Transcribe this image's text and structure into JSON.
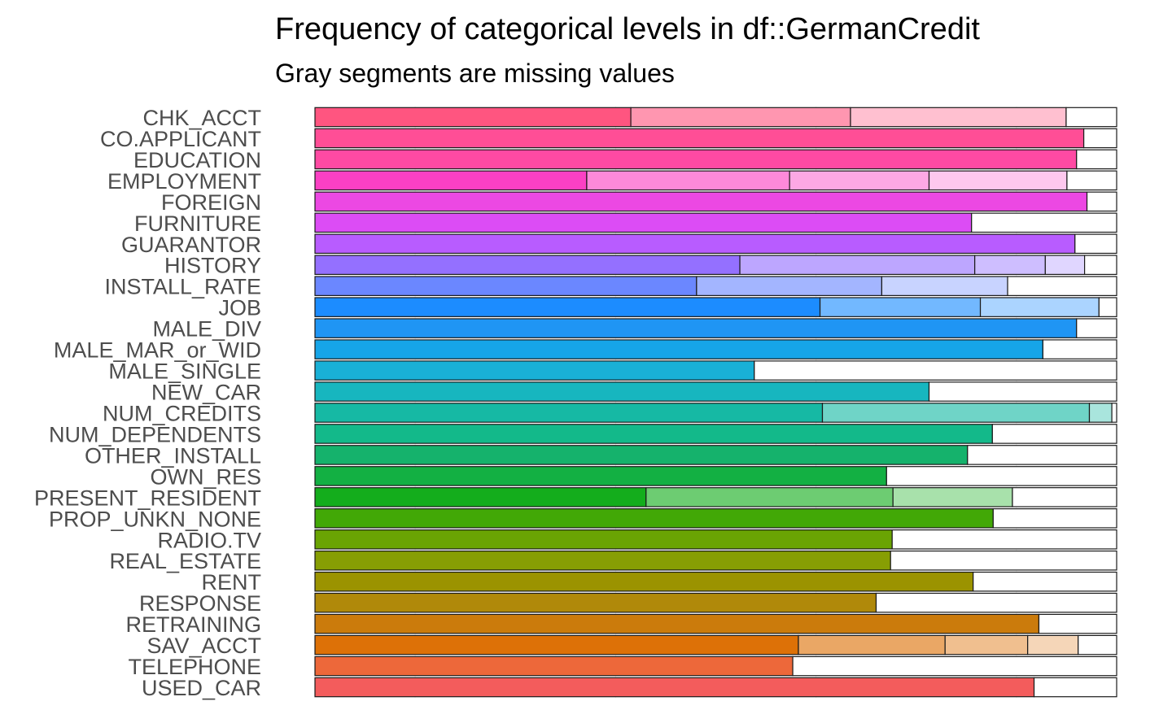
{
  "chart_data": {
    "type": "bar",
    "orientation": "horizontal",
    "stacked": true,
    "normalized": true,
    "title": "Frequency of categorical levels in df::GermanCredit",
    "subtitle": "Gray segments are missing values",
    "xlabel": "",
    "ylabel": "",
    "xlim": [
      0,
      1
    ],
    "grid": true,
    "legend": "none",
    "categories": [
      "CHK_ACCT",
      "CO.APPLICANT",
      "EDUCATION",
      "EMPLOYMENT",
      "FOREIGN",
      "FURNITURE",
      "GUARANTOR",
      "HISTORY",
      "INSTALL_RATE",
      "JOB",
      "MALE_DIV",
      "MALE_MAR_or_WID",
      "MALE_SINGLE",
      "NEW_CAR",
      "NUM_CREDITS",
      "NUM_DEPENDENTS",
      "OTHER_INSTALL",
      "OWN_RES",
      "PRESENT_RESIDENT",
      "PROP_UNKN_NONE",
      "RADIO.TV",
      "REAL_ESTATE",
      "RENT",
      "RESPONSE",
      "RETRAINING",
      "SAV_ACCT",
      "TELEPHONE",
      "USED_CAR"
    ],
    "bars": [
      {
        "name": "CHK_ACCT",
        "color": "#ff5580",
        "proportions": [
          0.394,
          0.274,
          0.269,
          0.063
        ]
      },
      {
        "name": "CO.APPLICANT",
        "color": "#ff4e96",
        "proportions": [
          0.959,
          0.041
        ]
      },
      {
        "name": "EDUCATION",
        "color": "#fe4aa3",
        "proportions": [
          0.95,
          0.05
        ]
      },
      {
        "name": "EMPLOYMENT",
        "color": "#fb40c4",
        "proportions": [
          0.339,
          0.253,
          0.174,
          0.172,
          0.062
        ]
      },
      {
        "name": "FOREIGN",
        "color": "#ec48e3",
        "proportions": [
          0.963,
          0.037
        ]
      },
      {
        "name": "FURNITURE",
        "color": "#dc4cf5",
        "proportions": [
          0.819,
          0.181
        ]
      },
      {
        "name": "GUARANTOR",
        "color": "#b85cff",
        "proportions": [
          0.948,
          0.052
        ]
      },
      {
        "name": "HISTORY",
        "color": "#9470ff",
        "proportions": [
          0.53,
          0.293,
          0.088,
          0.049,
          0.04
        ]
      },
      {
        "name": "INSTALL_RATE",
        "color": "#6b87ff",
        "proportions": [
          0.476,
          0.231,
          0.157,
          0.136
        ]
      },
      {
        "name": "JOB",
        "color": "#1c8cff",
        "proportions": [
          0.63,
          0.2,
          0.148,
          0.022
        ]
      },
      {
        "name": "MALE_DIV",
        "color": "#1f95f4",
        "proportions": [
          0.95,
          0.05
        ]
      },
      {
        "name": "MALE_MAR_or_WID",
        "color": "#16a5e8",
        "proportions": [
          0.908,
          0.092
        ]
      },
      {
        "name": "MALE_SINGLE",
        "color": "#19b0d6",
        "proportions": [
          0.548,
          0.452
        ]
      },
      {
        "name": "NEW_CAR",
        "color": "#17b6bf",
        "proportions": [
          0.766,
          0.234
        ]
      },
      {
        "name": "NUM_CREDITS",
        "color": "#16b9a4",
        "proportions": [
          0.633,
          0.333,
          0.028,
          0.006
        ]
      },
      {
        "name": "NUM_DEPENDENTS",
        "color": "#13b98a",
        "proportions": [
          0.845,
          0.155
        ]
      },
      {
        "name": "OTHER_INSTALL",
        "color": "#15b26c",
        "proportions": [
          0.814,
          0.186
        ]
      },
      {
        "name": "OWN_RES",
        "color": "#13b043",
        "proportions": [
          0.713,
          0.287
        ]
      },
      {
        "name": "PRESENT_RESIDENT",
        "color": "#14ad1c",
        "proportions": [
          0.413,
          0.308,
          0.149,
          0.13
        ]
      },
      {
        "name": "PROP_UNKN_NONE",
        "color": "#42a806",
        "proportions": [
          0.846,
          0.154
        ]
      },
      {
        "name": "RADIO.TV",
        "color": "#6aa403",
        "proportions": [
          0.72,
          0.28
        ]
      },
      {
        "name": "REAL_ESTATE",
        "color": "#879e04",
        "proportions": [
          0.718,
          0.282
        ]
      },
      {
        "name": "RENT",
        "color": "#9b9300",
        "proportions": [
          0.821,
          0.179
        ]
      },
      {
        "name": "RESPONSE",
        "color": "#b0890a",
        "proportions": [
          0.7,
          0.3
        ]
      },
      {
        "name": "RETRAINING",
        "color": "#cb7b0c",
        "proportions": [
          0.903,
          0.097
        ]
      },
      {
        "name": "SAV_ACCT",
        "color": "#dd7107",
        "proportions": [
          0.603,
          0.183,
          0.103,
          0.063,
          0.048
        ]
      },
      {
        "name": "TELEPHONE",
        "color": "#ed683a",
        "proportions": [
          0.596,
          0.404
        ]
      },
      {
        "name": "USED_CAR",
        "color": "#f35c5c",
        "proportions": [
          0.897,
          0.103
        ]
      }
    ]
  }
}
